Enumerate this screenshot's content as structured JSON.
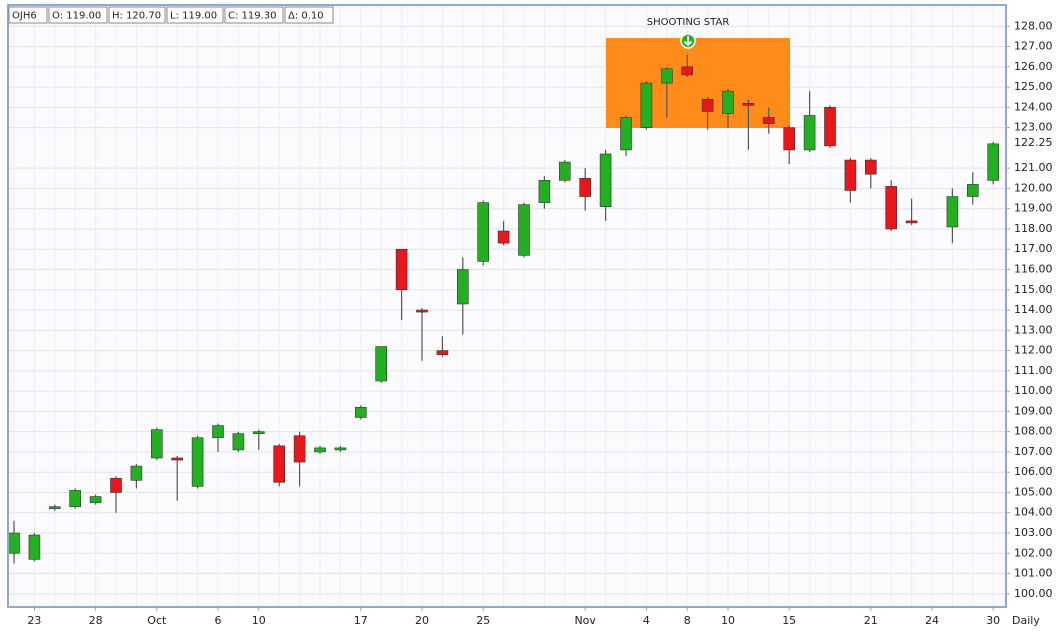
{
  "chart_data": {
    "type": "candlestick",
    "quote": [
      "OJH6",
      "O: 119.00",
      "H: 120.70",
      "L: 119.00",
      "C: 119.30",
      "Δ: 0.10"
    ],
    "annotation": "SHOOTING STAR",
    "period": "Daily",
    "last_price": 122.25,
    "up_color": "#22b022",
    "down_color": "#e8171b",
    "grid": true,
    "ylim": [
      99.35,
      129.05
    ],
    "yticks": [
      {
        "value": 100,
        "label": "100.00"
      },
      {
        "value": 101,
        "label": "101.00"
      },
      {
        "value": 102,
        "label": "102.00"
      },
      {
        "value": 103,
        "label": "103.00"
      },
      {
        "value": 104,
        "label": "104.00"
      },
      {
        "value": 105,
        "label": "105.00"
      },
      {
        "value": 106,
        "label": "106.00"
      },
      {
        "value": 107,
        "label": "107.00"
      },
      {
        "value": 108,
        "label": "108.00"
      },
      {
        "value": 109,
        "label": "109.00"
      },
      {
        "value": 110,
        "label": "110.00"
      },
      {
        "value": 111,
        "label": "111.00"
      },
      {
        "value": 112,
        "label": "112.00"
      },
      {
        "value": 113,
        "label": "113.00"
      },
      {
        "value": 114,
        "label": "114.00"
      },
      {
        "value": 115,
        "label": "115.00"
      },
      {
        "value": 116,
        "label": "116.00"
      },
      {
        "value": 117,
        "label": "117.00"
      },
      {
        "value": 118,
        "label": "118.00"
      },
      {
        "value": 119,
        "label": "119.00"
      },
      {
        "value": 120,
        "label": "120.00"
      },
      {
        "value": 121,
        "label": "121.00"
      },
      {
        "value": 123,
        "label": "123.00"
      },
      {
        "value": 124,
        "label": "124.00"
      },
      {
        "value": 125,
        "label": "125.00"
      },
      {
        "value": 126,
        "label": "126.00"
      },
      {
        "value": 127,
        "label": "127.00"
      },
      {
        "value": 128,
        "label": "128.00"
      }
    ],
    "categories": [
      null,
      "23",
      null,
      null,
      "28",
      null,
      null,
      "Oct",
      null,
      null,
      "6",
      null,
      "10",
      null,
      null,
      null,
      null,
      "17",
      null,
      null,
      "20",
      null,
      null,
      "25",
      null,
      null,
      null,
      null,
      "Nov",
      null,
      null,
      "4",
      null,
      "8",
      null,
      "10",
      null,
      null,
      "15",
      null,
      null,
      null,
      "21",
      null,
      null,
      "24",
      null,
      null,
      "30"
    ],
    "open": [
      102.0,
      101.7,
      104.2,
      104.3,
      104.5,
      105.7,
      105.6,
      106.7,
      106.7,
      105.3,
      107.7,
      107.1,
      107.9,
      107.3,
      107.8,
      107.0,
      107.1,
      108.7,
      110.5,
      117.0,
      114.0,
      112.0,
      114.3,
      116.4,
      117.9,
      116.7,
      119.3,
      120.4,
      120.5,
      119.1,
      121.9,
      123.0,
      125.2,
      126.0,
      124.4,
      123.7,
      124.2,
      123.5,
      123.0,
      121.9,
      124.0,
      121.4,
      121.4,
      120.1,
      118.4,
      null,
      118.1,
      119.6,
      120.4
    ],
    "high": [
      103.6,
      103.0,
      104.4,
      105.2,
      104.9,
      105.8,
      106.4,
      108.2,
      106.8,
      107.8,
      108.4,
      108.0,
      108.1,
      107.4,
      108.0,
      107.3,
      107.3,
      109.3,
      112.2,
      117.0,
      114.1,
      112.7,
      116.6,
      119.4,
      118.4,
      119.3,
      120.6,
      121.4,
      121.0,
      121.9,
      123.6,
      125.3,
      126.0,
      126.6,
      124.5,
      124.9,
      124.4,
      124.0,
      123.1,
      124.8,
      124.1,
      121.5,
      121.5,
      120.4,
      119.5,
      null,
      120.0,
      120.8,
      122.3
    ],
    "low": [
      101.5,
      101.6,
      104.1,
      104.2,
      104.4,
      104.0,
      105.2,
      106.6,
      104.6,
      105.2,
      107.0,
      107.0,
      107.1,
      105.3,
      105.3,
      106.9,
      107.0,
      108.6,
      110.4,
      113.5,
      111.5,
      111.7,
      112.8,
      116.2,
      117.2,
      116.6,
      119.0,
      120.3,
      118.9,
      118.4,
      121.6,
      122.9,
      123.5,
      125.5,
      122.9,
      123.0,
      121.9,
      122.7,
      121.2,
      121.8,
      122.0,
      119.3,
      120.0,
      117.9,
      118.2,
      null,
      117.3,
      119.2,
      120.2
    ],
    "close": [
      103.0,
      102.9,
      104.3,
      105.1,
      104.8,
      105.0,
      106.3,
      108.1,
      106.6,
      107.7,
      108.3,
      107.9,
      108.0,
      105.5,
      106.5,
      107.2,
      107.2,
      109.2,
      112.2,
      115.0,
      113.9,
      111.8,
      116.0,
      119.3,
      117.3,
      119.2,
      120.4,
      121.3,
      119.6,
      121.7,
      123.5,
      125.2,
      125.9,
      125.6,
      123.8,
      124.8,
      124.1,
      123.2,
      121.9,
      123.6,
      122.1,
      119.9,
      120.7,
      118.0,
      118.3,
      null,
      119.6,
      120.2,
      122.2
    ]
  }
}
